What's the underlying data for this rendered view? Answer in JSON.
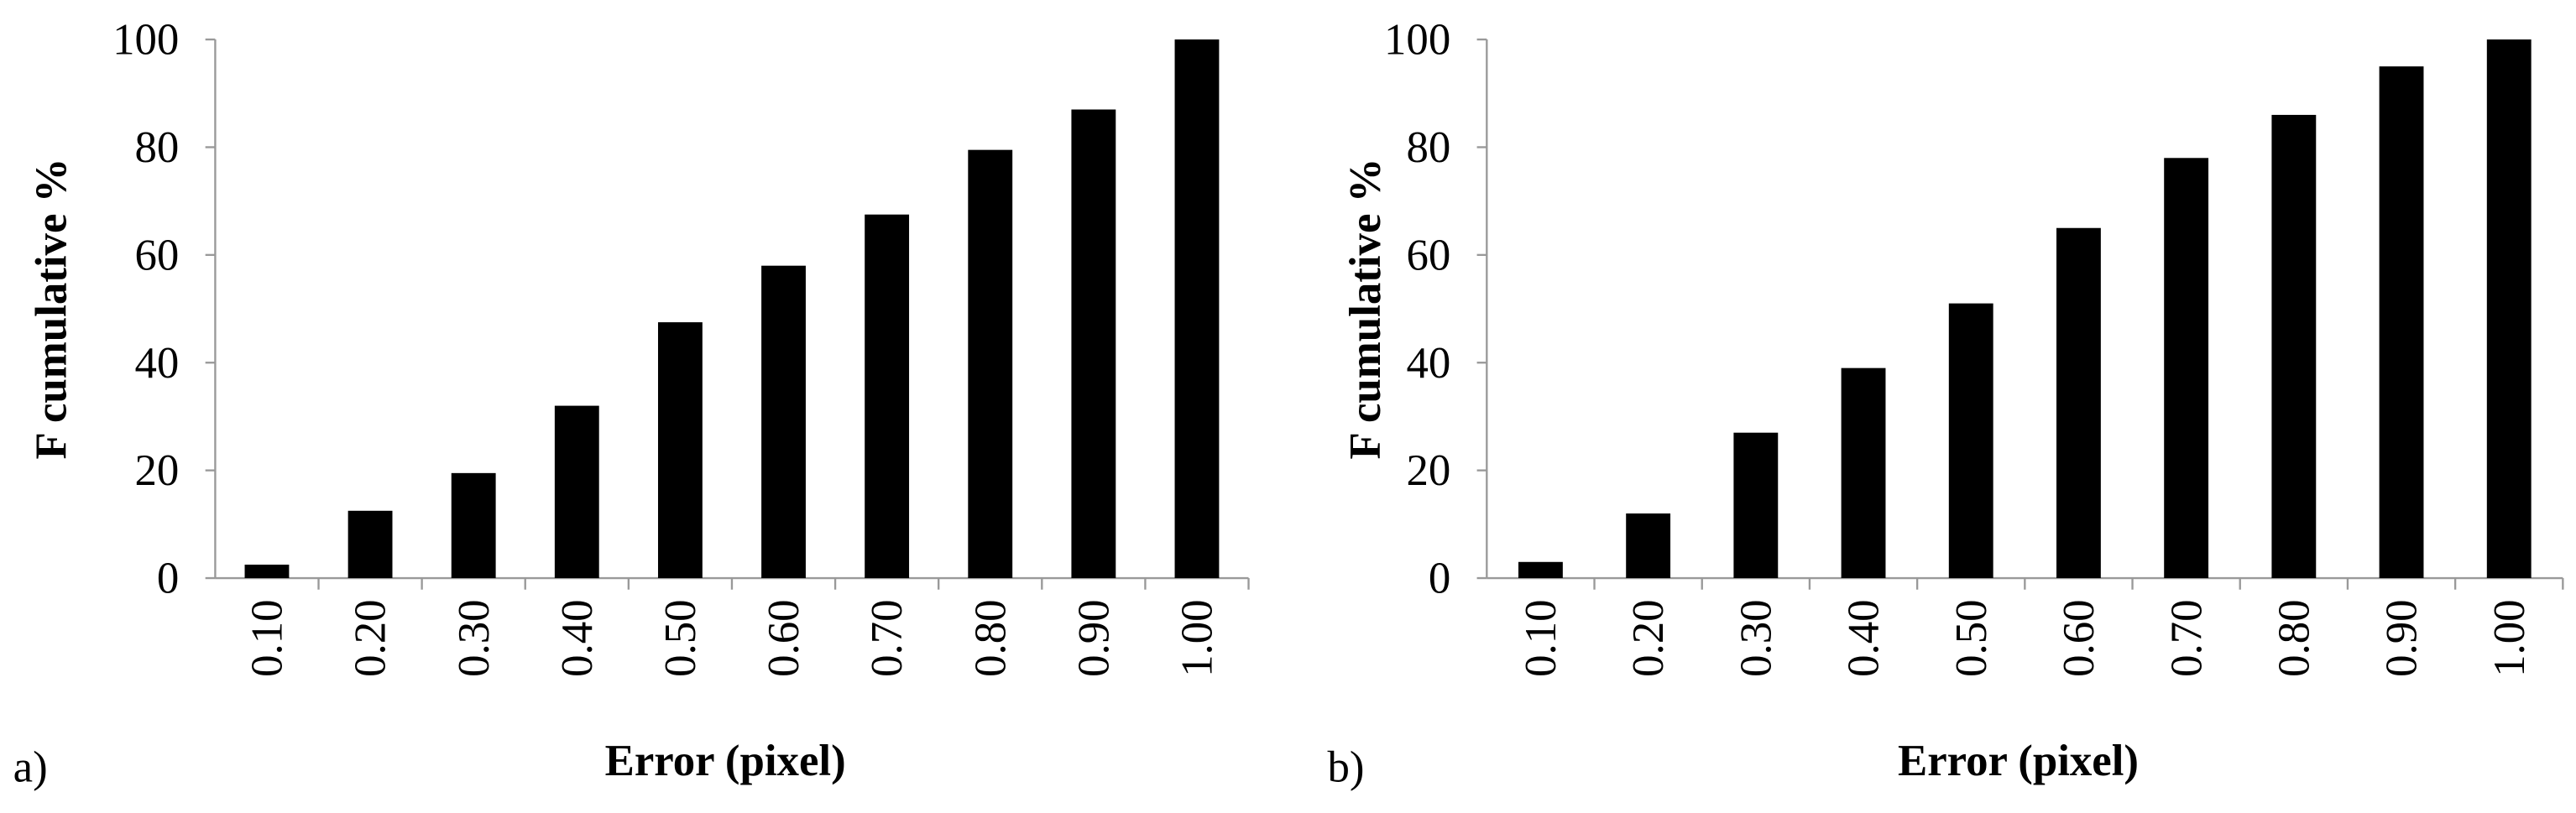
{
  "chart_data": [
    {
      "type": "bar",
      "panel_label": "a)",
      "x_label": "Error (pixel)",
      "y_label": "F cumulative %",
      "categories": [
        "0.10",
        "0.20",
        "0.30",
        "0.40",
        "0.50",
        "0.60",
        "0.70",
        "0.80",
        "0.90",
        "1.00"
      ],
      "values": [
        2.5,
        12.5,
        19.5,
        32,
        47.5,
        58,
        67.5,
        79.5,
        87,
        100
      ],
      "color": "#000000",
      "ylim": [
        0,
        100
      ],
      "yticks": [
        0,
        20,
        40,
        60,
        80,
        100
      ]
    },
    {
      "type": "bar",
      "panel_label": "b)",
      "x_label": "Error (pixel)",
      "y_label": "F cumulative %",
      "categories": [
        "0.10",
        "0.20",
        "0.30",
        "0.40",
        "0.50",
        "0.60",
        "0.70",
        "0.80",
        "0.90",
        "1.00"
      ],
      "values": [
        3,
        12,
        27,
        39,
        51,
        65,
        78,
        86,
        95,
        100
      ],
      "color": "#000000",
      "ylim": [
        0,
        100
      ],
      "yticks": [
        0,
        20,
        40,
        60,
        80,
        100
      ]
    }
  ]
}
